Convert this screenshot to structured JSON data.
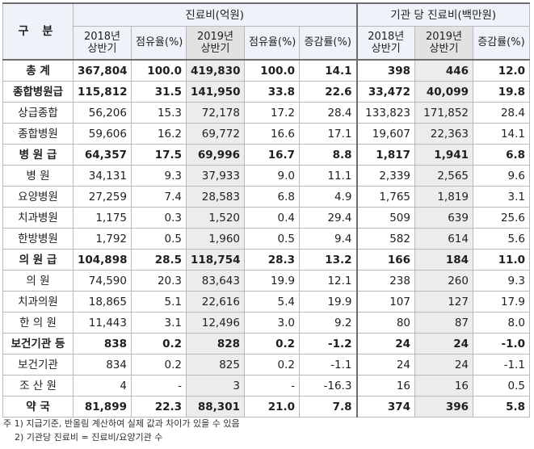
{
  "header": {
    "gubun": "구 분",
    "group1": "진료비(억원)",
    "group2": "기관 당 진료비(백만원)",
    "cols": [
      "2018년 상반기",
      "점유율(%)",
      "2019년 상반기",
      "점유율(%)",
      "증감률(%)",
      "2018년 상반기",
      "2019년 상반기",
      "증감률(%)"
    ]
  },
  "rows": [
    {
      "label": "총 계",
      "bold": true,
      "cells": [
        "367,804",
        "100.0",
        "419,830",
        "100.0",
        "14.1",
        "398",
        "446",
        "12.0"
      ]
    },
    {
      "label": "종합병원급",
      "bold": true,
      "cells": [
        "115,812",
        "31.5",
        "141,950",
        "33.8",
        "22.6",
        "33,472",
        "40,099",
        "19.8"
      ]
    },
    {
      "label": "상급종합",
      "bold": false,
      "cells": [
        "56,206",
        "15.3",
        "72,178",
        "17.2",
        "28.4",
        "133,823",
        "171,852",
        "28.4"
      ]
    },
    {
      "label": "종합병원",
      "bold": false,
      "cells": [
        "59,606",
        "16.2",
        "69,772",
        "16.6",
        "17.1",
        "19,607",
        "22,363",
        "14.1"
      ]
    },
    {
      "label": "병 원 급",
      "bold": true,
      "cells": [
        "64,357",
        "17.5",
        "69,996",
        "16.7",
        "8.8",
        "1,817",
        "1,941",
        "6.8"
      ]
    },
    {
      "label": "병 원",
      "bold": false,
      "cells": [
        "34,131",
        "9.3",
        "37,933",
        "9.0",
        "11.1",
        "2,339",
        "2,565",
        "9.6"
      ]
    },
    {
      "label": "요양병원",
      "bold": false,
      "cells": [
        "27,259",
        "7.4",
        "28,583",
        "6.8",
        "4.9",
        "1,765",
        "1,819",
        "3.1"
      ]
    },
    {
      "label": "치과병원",
      "bold": false,
      "cells": [
        "1,175",
        "0.3",
        "1,520",
        "0.4",
        "29.4",
        "509",
        "639",
        "25.6"
      ]
    },
    {
      "label": "한방병원",
      "bold": false,
      "cells": [
        "1,792",
        "0.5",
        "1,960",
        "0.5",
        "9.4",
        "582",
        "614",
        "5.6"
      ]
    },
    {
      "label": "의 원 급",
      "bold": true,
      "cells": [
        "104,898",
        "28.5",
        "118,754",
        "28.3",
        "13.2",
        "166",
        "184",
        "11.0"
      ]
    },
    {
      "label": "의 원",
      "bold": false,
      "cells": [
        "74,590",
        "20.3",
        "83,643",
        "19.9",
        "12.1",
        "238",
        "260",
        "9.3"
      ]
    },
    {
      "label": "치과의원",
      "bold": false,
      "cells": [
        "18,865",
        "5.1",
        "22,616",
        "5.4",
        "19.9",
        "107",
        "127",
        "17.9"
      ]
    },
    {
      "label": "한 의 원",
      "bold": false,
      "cells": [
        "11,443",
        "3.1",
        "12,496",
        "3.0",
        "9.2",
        "80",
        "87",
        "8.0"
      ]
    },
    {
      "label": "보건기관 등",
      "bold": true,
      "cells": [
        "838",
        "0.2",
        "828",
        "0.2",
        "-1.2",
        "24",
        "24",
        "-1.0"
      ]
    },
    {
      "label": "보건기관",
      "bold": false,
      "cells": [
        "834",
        "0.2",
        "825",
        "0.2",
        "-1.1",
        "24",
        "24",
        "-1.1"
      ]
    },
    {
      "label": "조 산 원",
      "bold": false,
      "cells": [
        "4",
        "-",
        "3",
        "-",
        "-16.3",
        "16",
        "16",
        "0.5"
      ]
    },
    {
      "label": "약 국",
      "bold": true,
      "cells": [
        "81,899",
        "22.3",
        "88,301",
        "21.0",
        "7.8",
        "374",
        "396",
        "5.8"
      ]
    }
  ],
  "notes": [
    "주 1) 지급기준, 반올림 계산하여 실제 값과 차이가 있을 수 있음",
    "    2) 기관당 진료비 = 진료비/요양기관 수"
  ]
}
